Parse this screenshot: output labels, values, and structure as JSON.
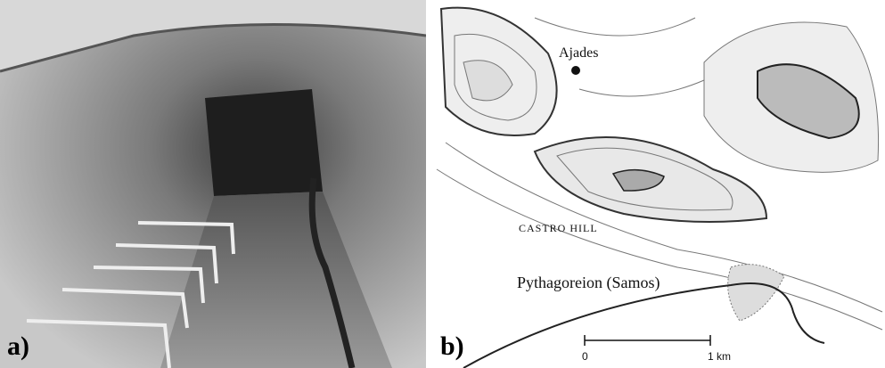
{
  "panels": [
    {
      "label": "a)"
    },
    {
      "label": "b)",
      "places": [
        "Ajades",
        "CASTRO HILL",
        "Pythagoreion (Samos)"
      ],
      "scale": [
        "0",
        "1 km"
      ]
    }
  ]
}
